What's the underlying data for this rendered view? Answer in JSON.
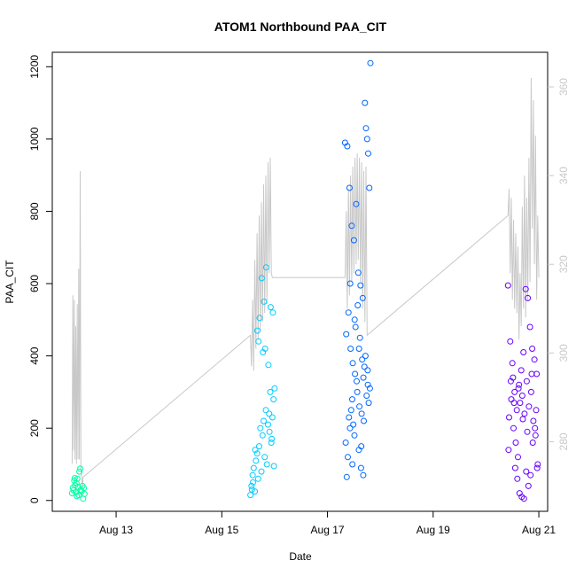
{
  "chart_data": {
    "type": "scatter",
    "title": "ATOM1 Northbound PAA_CIT",
    "xlabel": "Date",
    "ylabel": "PAA_CIT",
    "x_axis_type": "date",
    "xlim": [
      "2016-08-11T19:00",
      "2016-08-21T04:00"
    ],
    "ylim": [
      -30,
      1240
    ],
    "x_ticks": [
      {
        "label": "Aug 13",
        "date": "2016-08-13"
      },
      {
        "label": "Aug 15",
        "date": "2016-08-15"
      },
      {
        "label": "Aug 17",
        "date": "2016-08-17"
      },
      {
        "label": "Aug 19",
        "date": "2016-08-19"
      },
      {
        "label": "Aug 21",
        "date": "2016-08-21"
      }
    ],
    "y_ticks": [
      0,
      200,
      400,
      600,
      800,
      1000,
      1200
    ],
    "secondary_y": {
      "ylim": [
        264.3,
        367.8
      ],
      "ticks": [
        280,
        300,
        320,
        340,
        360
      ],
      "color": "#c8c8c8"
    },
    "grid": false,
    "legend": "none",
    "series": [
      {
        "color": "#00ffa2",
        "points": [
          [
            "2016-08-12T04:00",
            20
          ],
          [
            "2016-08-12T04:20",
            35
          ],
          [
            "2016-08-12T04:40",
            28
          ],
          [
            "2016-08-12T05:00",
            55
          ],
          [
            "2016-08-12T05:20",
            42
          ],
          [
            "2016-08-12T05:40",
            22
          ],
          [
            "2016-08-12T06:00",
            48
          ],
          [
            "2016-08-12T06:20",
            60
          ],
          [
            "2016-08-12T06:40",
            38
          ],
          [
            "2016-08-12T07:00",
            15
          ],
          [
            "2016-08-12T07:20",
            80
          ],
          [
            "2016-08-12T07:40",
            88
          ],
          [
            "2016-08-12T08:00",
            30
          ],
          [
            "2016-08-12T08:20",
            25
          ],
          [
            "2016-08-12T08:40",
            40
          ],
          [
            "2016-08-12T09:00",
            5
          ],
          [
            "2016-08-12T09:20",
            34
          ],
          [
            "2016-08-12T09:40",
            18
          ],
          [
            "2016-08-12T05:10",
            62
          ],
          [
            "2016-08-12T06:10",
            12
          ]
        ]
      },
      {
        "color": "#00ccff",
        "points": [
          [
            "2016-08-15T13:00",
            15
          ],
          [
            "2016-08-15T13:30",
            40
          ],
          [
            "2016-08-15T14:00",
            70
          ],
          [
            "2016-08-15T14:30",
            90
          ],
          [
            "2016-08-15T15:00",
            25
          ],
          [
            "2016-08-15T15:30",
            110
          ],
          [
            "2016-08-15T16:00",
            130
          ],
          [
            "2016-08-15T16:30",
            60
          ],
          [
            "2016-08-15T17:00",
            150
          ],
          [
            "2016-08-15T17:30",
            200
          ],
          [
            "2016-08-15T18:00",
            80
          ],
          [
            "2016-08-15T18:30",
            180
          ],
          [
            "2016-08-15T19:00",
            220
          ],
          [
            "2016-08-15T19:30",
            120
          ],
          [
            "2016-08-15T20:00",
            250
          ],
          [
            "2016-08-15T20:30",
            100
          ],
          [
            "2016-08-15T21:00",
            210
          ],
          [
            "2016-08-15T21:30",
            240
          ],
          [
            "2016-08-15T22:00",
            300
          ],
          [
            "2016-08-15T22:30",
            160
          ],
          [
            "2016-08-15T23:00",
            230
          ],
          [
            "2016-08-15T23:30",
            280
          ],
          [
            "2016-08-16T00:00",
            310
          ],
          [
            "2016-08-15T16:10",
            470
          ],
          [
            "2016-08-15T17:10",
            505
          ],
          [
            "2016-08-15T18:10",
            615
          ],
          [
            "2016-08-15T19:10",
            550
          ],
          [
            "2016-08-15T20:10",
            645
          ],
          [
            "2016-08-15T21:10",
            375
          ],
          [
            "2016-08-15T22:10",
            535
          ],
          [
            "2016-08-15T23:10",
            520
          ],
          [
            "2016-08-15T16:40",
            440
          ],
          [
            "2016-08-15T19:40",
            420
          ],
          [
            "2016-08-15T18:40",
            410
          ],
          [
            "2016-08-15T14:10",
            50
          ],
          [
            "2016-08-15T15:10",
            140
          ],
          [
            "2016-08-15T21:40",
            190
          ],
          [
            "2016-08-15T22:40",
            170
          ],
          [
            "2016-08-15T13:40",
            30
          ],
          [
            "2016-08-15T23:40",
            95
          ]
        ]
      },
      {
        "color": "#0066ff",
        "points": [
          [
            "2016-08-17T08:00",
            990
          ],
          [
            "2016-08-17T09:00",
            980
          ],
          [
            "2016-08-17T10:00",
            865
          ],
          [
            "2016-08-17T11:00",
            760
          ],
          [
            "2016-08-17T12:00",
            720
          ],
          [
            "2016-08-17T13:00",
            820
          ],
          [
            "2016-08-17T14:00",
            630
          ],
          [
            "2016-08-17T15:00",
            595
          ],
          [
            "2016-08-17T16:00",
            560
          ],
          [
            "2016-08-17T17:00",
            1100
          ],
          [
            "2016-08-17T17:30",
            1030
          ],
          [
            "2016-08-17T18:00",
            1000
          ],
          [
            "2016-08-17T18:30",
            960
          ],
          [
            "2016-08-17T19:00",
            865
          ],
          [
            "2016-08-17T19:30",
            1210
          ],
          [
            "2016-08-17T08:30",
            460
          ],
          [
            "2016-08-17T09:30",
            520
          ],
          [
            "2016-08-17T10:30",
            420
          ],
          [
            "2016-08-17T11:30",
            380
          ],
          [
            "2016-08-17T12:30",
            350
          ],
          [
            "2016-08-17T13:30",
            300
          ],
          [
            "2016-08-17T14:30",
            260
          ],
          [
            "2016-08-17T15:30",
            240
          ],
          [
            "2016-08-17T16:30",
            220
          ],
          [
            "2016-08-17T08:15",
            160
          ],
          [
            "2016-08-17T09:15",
            120
          ],
          [
            "2016-08-17T10:15",
            200
          ],
          [
            "2016-08-17T11:15",
            280
          ],
          [
            "2016-08-17T12:15",
            180
          ],
          [
            "2016-08-17T13:15",
            330
          ],
          [
            "2016-08-17T14:15",
            140
          ],
          [
            "2016-08-17T15:15",
            90
          ],
          [
            "2016-08-17T16:15",
            70
          ],
          [
            "2016-08-17T17:15",
            400
          ],
          [
            "2016-08-17T18:15",
            360
          ],
          [
            "2016-08-17T19:15",
            310
          ],
          [
            "2016-08-17T08:45",
            65
          ],
          [
            "2016-08-17T09:45",
            230
          ],
          [
            "2016-08-17T10:45",
            250
          ],
          [
            "2016-08-17T11:45",
            210
          ],
          [
            "2016-08-17T12:45",
            480
          ],
          [
            "2016-08-17T13:45",
            540
          ],
          [
            "2016-08-17T14:45",
            450
          ],
          [
            "2016-08-17T15:45",
            390
          ],
          [
            "2016-08-17T16:45",
            370
          ],
          [
            "2016-08-17T17:45",
            290
          ],
          [
            "2016-08-17T18:45",
            270
          ],
          [
            "2016-08-17T10:20",
            600
          ],
          [
            "2016-08-17T12:20",
            500
          ],
          [
            "2016-08-17T14:20",
            420
          ],
          [
            "2016-08-17T16:20",
            340
          ],
          [
            "2016-08-17T18:20",
            320
          ],
          [
            "2016-08-17T11:20",
            100
          ],
          [
            "2016-08-17T15:20",
            150
          ]
        ]
      },
      {
        "color": "#6600ff",
        "points": [
          [
            "2016-08-20T10:00",
            595
          ],
          [
            "2016-08-20T11:00",
            440
          ],
          [
            "2016-08-20T12:00",
            380
          ],
          [
            "2016-08-20T13:00",
            300
          ],
          [
            "2016-08-20T14:00",
            250
          ],
          [
            "2016-08-20T15:00",
            320
          ],
          [
            "2016-08-20T16:00",
            360
          ],
          [
            "2016-08-20T17:00",
            410
          ],
          [
            "2016-08-20T18:00",
            585
          ],
          [
            "2016-08-20T19:00",
            560
          ],
          [
            "2016-08-20T20:00",
            480
          ],
          [
            "2016-08-20T21:00",
            420
          ],
          [
            "2016-08-20T22:00",
            390
          ],
          [
            "2016-08-20T23:00",
            350
          ],
          [
            "2016-08-20T10:30",
            230
          ],
          [
            "2016-08-20T11:30",
            280
          ],
          [
            "2016-08-20T12:30",
            200
          ],
          [
            "2016-08-20T13:30",
            160
          ],
          [
            "2016-08-20T14:30",
            120
          ],
          [
            "2016-08-20T15:30",
            270
          ],
          [
            "2016-08-20T16:30",
            290
          ],
          [
            "2016-08-20T17:30",
            240
          ],
          [
            "2016-08-20T18:30",
            330
          ],
          [
            "2016-08-20T19:30",
            260
          ],
          [
            "2016-08-20T20:30",
            300
          ],
          [
            "2016-08-20T21:30",
            220
          ],
          [
            "2016-08-20T22:30",
            180
          ],
          [
            "2016-08-20T23:30",
            100
          ],
          [
            "2016-08-20T10:15",
            140
          ],
          [
            "2016-08-20T11:15",
            330
          ],
          [
            "2016-08-20T12:15",
            340
          ],
          [
            "2016-08-20T13:15",
            90
          ],
          [
            "2016-08-20T14:15",
            60
          ],
          [
            "2016-08-20T15:15",
            20
          ],
          [
            "2016-08-20T16:15",
            10
          ],
          [
            "2016-08-20T17:15",
            5
          ],
          [
            "2016-08-20T18:15",
            80
          ],
          [
            "2016-08-20T19:15",
            40
          ],
          [
            "2016-08-20T20:15",
            70
          ],
          [
            "2016-08-20T21:15",
            160
          ],
          [
            "2016-08-20T22:15",
            200
          ],
          [
            "2016-08-20T23:15",
            90
          ],
          [
            "2016-08-20T12:45",
            270
          ],
          [
            "2016-08-20T14:45",
            310
          ],
          [
            "2016-08-20T16:45",
            225
          ],
          [
            "2016-08-20T18:45",
            190
          ],
          [
            "2016-08-20T20:45",
            350
          ],
          [
            "2016-08-20T22:45",
            250
          ]
        ]
      }
    ],
    "secondary_line": {
      "color": "#c8c8c8",
      "points": [
        [
          "2016-08-12T04:00",
          275
        ],
        [
          "2016-08-12T04:20",
          313
        ],
        [
          "2016-08-12T04:40",
          278
        ],
        [
          "2016-08-12T05:00",
          312
        ],
        [
          "2016-08-12T05:20",
          276
        ],
        [
          "2016-08-12T05:40",
          306
        ],
        [
          "2016-08-12T06:00",
          275
        ],
        [
          "2016-08-12T06:20",
          311
        ],
        [
          "2016-08-12T06:40",
          276
        ],
        [
          "2016-08-12T07:00",
          319
        ],
        [
          "2016-08-12T07:20",
          276
        ],
        [
          "2016-08-12T07:40",
          341
        ],
        [
          "2016-08-12T08:00",
          274
        ],
        [
          "2016-08-12T08:20",
          272
        ],
        [
          "2016-08-12T08:40",
          270
        ],
        [
          "2016-08-12T09:00",
          272
        ],
        [
          "2016-08-15T13:00",
          304
        ],
        [
          "2016-08-15T13:30",
          297
        ],
        [
          "2016-08-15T14:00",
          312
        ],
        [
          "2016-08-15T14:30",
          296
        ],
        [
          "2016-08-15T15:00",
          321
        ],
        [
          "2016-08-15T15:30",
          301
        ],
        [
          "2016-08-15T16:00",
          327
        ],
        [
          "2016-08-15T16:30",
          303
        ],
        [
          "2016-08-15T17:00",
          331
        ],
        [
          "2016-08-15T17:30",
          305
        ],
        [
          "2016-08-15T18:00",
          334
        ],
        [
          "2016-08-15T18:30",
          307
        ],
        [
          "2016-08-15T19:00",
          338
        ],
        [
          "2016-08-15T19:30",
          309
        ],
        [
          "2016-08-15T20:00",
          340
        ],
        [
          "2016-08-15T20:30",
          311
        ],
        [
          "2016-08-15T21:00",
          343
        ],
        [
          "2016-08-15T21:30",
          318
        ],
        [
          "2016-08-15T22:00",
          344
        ],
        [
          "2016-08-15T22:30",
          318
        ],
        [
          "2016-08-15T23:00",
          317
        ],
        [
          "2016-08-17T08:00",
          317
        ],
        [
          "2016-08-17T08:30",
          332
        ],
        [
          "2016-08-17T09:00",
          310
        ],
        [
          "2016-08-17T09:30",
          337
        ],
        [
          "2016-08-17T10:00",
          313
        ],
        [
          "2016-08-17T10:30",
          340
        ],
        [
          "2016-08-17T11:00",
          316
        ],
        [
          "2016-08-17T11:30",
          342
        ],
        [
          "2016-08-17T12:00",
          318
        ],
        [
          "2016-08-17T12:30",
          344
        ],
        [
          "2016-08-17T13:00",
          320
        ],
        [
          "2016-08-17T13:30",
          345
        ],
        [
          "2016-08-17T14:00",
          321
        ],
        [
          "2016-08-17T14:30",
          344
        ],
        [
          "2016-08-17T15:00",
          316
        ],
        [
          "2016-08-17T15:30",
          343
        ],
        [
          "2016-08-17T16:00",
          310
        ],
        [
          "2016-08-17T16:30",
          341
        ],
        [
          "2016-08-17T17:00",
          307
        ],
        [
          "2016-08-17T17:30",
          342
        ],
        [
          "2016-08-17T18:00",
          304
        ],
        [
          "2016-08-20T10:00",
          331
        ],
        [
          "2016-08-20T10:30",
          337
        ],
        [
          "2016-08-20T11:00",
          318
        ],
        [
          "2016-08-20T11:30",
          335
        ],
        [
          "2016-08-20T12:00",
          312
        ],
        [
          "2016-08-20T12:30",
          330
        ],
        [
          "2016-08-20T13:00",
          310
        ],
        [
          "2016-08-20T13:30",
          327
        ],
        [
          "2016-08-20T14:00",
          309
        ],
        [
          "2016-08-20T14:30",
          324
        ],
        [
          "2016-08-20T15:00",
          303
        ],
        [
          "2016-08-20T15:30",
          318
        ],
        [
          "2016-08-20T16:00",
          306
        ],
        [
          "2016-08-20T16:30",
          333
        ],
        [
          "2016-08-20T17:00",
          310
        ],
        [
          "2016-08-20T17:30",
          340
        ],
        [
          "2016-08-20T18:00",
          308
        ],
        [
          "2016-08-20T18:30",
          335
        ],
        [
          "2016-08-20T19:00",
          312
        ],
        [
          "2016-08-20T19:30",
          344
        ],
        [
          "2016-08-20T20:00",
          316
        ],
        [
          "2016-08-20T20:30",
          362
        ],
        [
          "2016-08-20T21:00",
          328
        ],
        [
          "2016-08-20T21:30",
          357
        ],
        [
          "2016-08-20T22:00",
          320
        ],
        [
          "2016-08-20T22:30",
          349
        ],
        [
          "2016-08-20T23:00",
          312
        ],
        [
          "2016-08-20T23:30",
          331
        ],
        [
          "2016-08-21T00:00",
          317
        ]
      ]
    }
  }
}
